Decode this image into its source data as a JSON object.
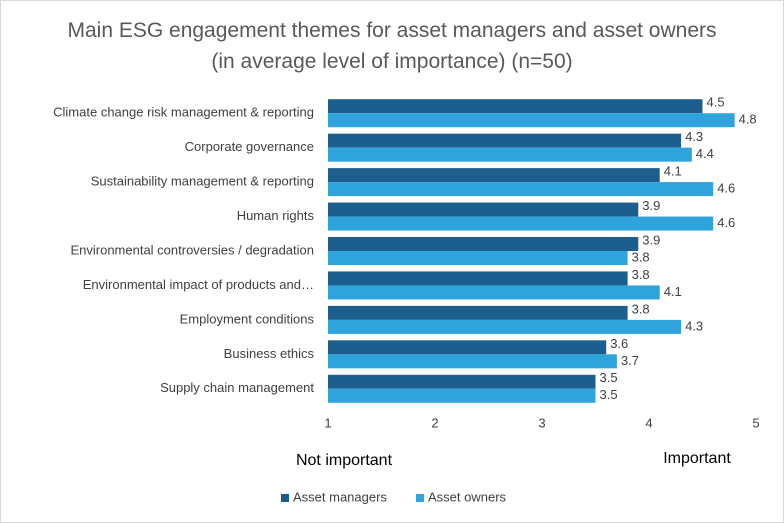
{
  "chart_data": {
    "type": "bar",
    "orientation": "horizontal",
    "title": "Main ESG engagement themes for asset managers and asset owners (in average level of importance) (n=50)",
    "categories": [
      "Climate change risk management & reporting",
      "Corporate governance",
      "Sustainability management & reporting",
      "Human rights",
      "Environmental controversies / degradation",
      "Environmental impact of products and…",
      "Employment conditions",
      "Business ethics",
      "Supply chain management"
    ],
    "series": [
      {
        "name": "Asset managers",
        "color": "#1c5f8e",
        "values": [
          4.5,
          4.3,
          4.1,
          3.9,
          3.9,
          3.8,
          3.8,
          3.6,
          3.5
        ]
      },
      {
        "name": "Asset owners",
        "color": "#2fa3dc",
        "values": [
          4.8,
          4.4,
          4.6,
          4.6,
          3.8,
          4.1,
          4.3,
          3.7,
          3.5
        ]
      }
    ],
    "xlim": [
      1,
      5
    ],
    "xticks": [
      1,
      2,
      3,
      4,
      5
    ],
    "grid": false,
    "annotations": [
      "Not important",
      "Important"
    ],
    "legend": "bottom"
  }
}
